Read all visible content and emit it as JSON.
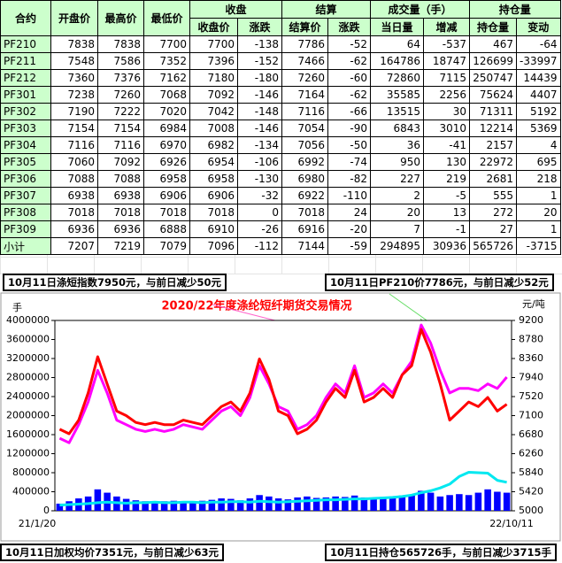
{
  "table": {
    "header_top": [
      "合约",
      "开盘价",
      "最高价",
      "最低价",
      "收盘",
      "结算",
      "成交量（手）",
      "持仓量"
    ],
    "header_sub": [
      "收盘价",
      "涨跌",
      "结算价",
      "涨跌",
      "当日量",
      "增减",
      "持仓量",
      "变动"
    ],
    "rows": [
      [
        "PF210",
        7838,
        7838,
        7700,
        7700,
        -138,
        7786,
        -52,
        64,
        -537,
        467,
        -64
      ],
      [
        "PF211",
        7548,
        7586,
        7352,
        7396,
        -152,
        7466,
        -62,
        164786,
        18747,
        126699,
        -33997
      ],
      [
        "PF212",
        7360,
        7376,
        7162,
        7180,
        -180,
        7260,
        -60,
        72860,
        7115,
        250747,
        14439
      ],
      [
        "PF301",
        7238,
        7260,
        7068,
        7092,
        -146,
        7164,
        -62,
        35585,
        2256,
        75624,
        4407
      ],
      [
        "PF302",
        7190,
        7222,
        7020,
        7042,
        -148,
        7116,
        -66,
        13515,
        30,
        71311,
        5192
      ],
      [
        "PF303",
        7154,
        7154,
        6984,
        7008,
        -146,
        7054,
        -90,
        6843,
        3010,
        12214,
        5369
      ],
      [
        "PF304",
        7116,
        7116,
        6970,
        6982,
        -134,
        7056,
        -50,
        36,
        -41,
        2157,
        4
      ],
      [
        "PF305",
        7060,
        7092,
        6926,
        6954,
        -106,
        6992,
        -74,
        950,
        130,
        22972,
        695
      ],
      [
        "PF306",
        7088,
        7088,
        6958,
        6958,
        -130,
        6980,
        -82,
        227,
        219,
        2681,
        218
      ],
      [
        "PF307",
        6938,
        6938,
        6906,
        6906,
        -32,
        6922,
        -110,
        2,
        -5,
        555,
        1
      ],
      [
        "PF308",
        7018,
        7018,
        7018,
        7018,
        0,
        7018,
        24,
        20,
        13,
        272,
        20
      ],
      [
        "PF309",
        6936,
        6936,
        6888,
        6910,
        -26,
        6916,
        -20,
        7,
        -1,
        27,
        1
      ],
      [
        "小计",
        7207,
        7219,
        7079,
        7096,
        -112,
        7144,
        -59,
        294895,
        30936,
        565726,
        -3715
      ]
    ]
  },
  "notes": [
    "10月11日涤短指数7950元，与前日减少50元",
    "10月11日PF210价7786元，与前日减少52元",
    "10月11日加权均价7351元，与前日减少63元",
    "10月11日持仓565726手，与前日减少3715手"
  ],
  "chart_data": {
    "type": "bar-line",
    "title": "2020/22年度涤纶短纤期货交易情况",
    "y_label": "手",
    "y2_label": "元/吨",
    "categories": [
      "21/1/20",
      null,
      null,
      null,
      null,
      null,
      null,
      null,
      null,
      null,
      null,
      null,
      null,
      null,
      null,
      null,
      null,
      null,
      null,
      null,
      null,
      null,
      null,
      null,
      null,
      null,
      null,
      null,
      null,
      null,
      null,
      null,
      null,
      null,
      null,
      null,
      null,
      null,
      null,
      null,
      null,
      null,
      null,
      null,
      null,
      null,
      null,
      "22/10/11"
    ],
    "ylim": [
      0,
      4000000
    ],
    "yticks": [
      0,
      400000,
      800000,
      1200000,
      1600000,
      2000000,
      2400000,
      2800000,
      3200000,
      3600000,
      4000000
    ],
    "y2lim": [
      5000,
      9200
    ],
    "y2ticks": [
      5000,
      5420,
      5840,
      6260,
      6680,
      7100,
      7520,
      7940,
      8360,
      8780,
      9200
    ],
    "series": [
      {
        "type": "bar",
        "color": "#0000ff",
        "axis": "y",
        "values": [
          150000,
          200000,
          260000,
          300000,
          450000,
          380000,
          300000,
          250000,
          220000,
          200000,
          180000,
          200000,
          210000,
          190000,
          200000,
          210000,
          230000,
          260000,
          250000,
          220000,
          260000,
          330000,
          300000,
          260000,
          240000,
          280000,
          300000,
          270000,
          280000,
          300000,
          290000,
          320000,
          280000,
          270000,
          290000,
          300000,
          320000,
          340000,
          420000,
          380000,
          300000,
          330000,
          350000,
          330000,
          380000,
          450000,
          400000,
          380000
        ]
      },
      {
        "type": "line",
        "color": "#00e8f0",
        "axis": "y",
        "values": [
          120000,
          130000,
          140000,
          150000,
          170000,
          180000,
          170000,
          160000,
          170000,
          170000,
          180000,
          170000,
          170000,
          180000,
          180000,
          170000,
          180000,
          180000,
          190000,
          190000,
          180000,
          200000,
          190000,
          180000,
          190000,
          200000,
          210000,
          220000,
          230000,
          230000,
          240000,
          250000,
          250000,
          260000,
          270000,
          280000,
          300000,
          330000,
          380000,
          420000,
          480000,
          560000,
          720000,
          810000,
          800000,
          790000,
          640000,
          600000
        ]
      },
      {
        "type": "line",
        "color": "#ff00ff",
        "axis": "y2",
        "values": [
          6600,
          6500,
          6900,
          7400,
          8100,
          7600,
          7000,
          6900,
          6800,
          6750,
          6800,
          6750,
          6800,
          6900,
          6850,
          6800,
          7000,
          7200,
          7300,
          7100,
          7500,
          8200,
          7800,
          7300,
          7200,
          6800,
          6900,
          7100,
          7500,
          7800,
          7600,
          8200,
          7500,
          7600,
          7800,
          7600,
          8000,
          8300,
          9100,
          8700,
          8100,
          7600,
          7700,
          7700,
          7650,
          7800,
          7700,
          7950
        ]
      },
      {
        "type": "line",
        "color": "#ff0000",
        "axis": "y2",
        "values": [
          6800,
          6700,
          7000,
          7600,
          8400,
          7800,
          7200,
          7100,
          6950,
          6900,
          6950,
          6900,
          6900,
          7000,
          6950,
          6900,
          7100,
          7300,
          7400,
          7200,
          7600,
          8350,
          7900,
          7200,
          7100,
          6700,
          6800,
          7000,
          7400,
          7700,
          7500,
          8100,
          7400,
          7500,
          7700,
          7500,
          8000,
          8200,
          9000,
          8500,
          7800,
          7000,
          7200,
          7400,
          7300,
          7500,
          7200,
          7350
        ]
      }
    ]
  }
}
